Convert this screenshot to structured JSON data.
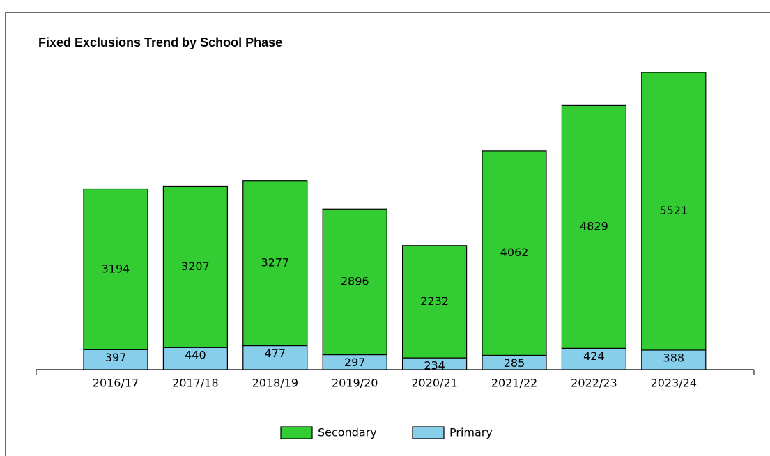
{
  "chart_data": {
    "type": "stacked_bar",
    "title": "Fixed Exclusions Trend by School Phase",
    "categories": [
      "2016/17",
      "2017/18",
      "2018/19",
      "2019/20",
      "2020/21",
      "2021/22",
      "2022/23",
      "2023/24"
    ],
    "series": [
      {
        "name": "Secondary",
        "color": "#33cc33",
        "values": [
          3194,
          3207,
          3277,
          2896,
          2232,
          4062,
          4829,
          5521
        ]
      },
      {
        "name": "Primary",
        "color": "#87ceeb",
        "values": [
          397,
          440,
          477,
          297,
          234,
          285,
          424,
          388
        ]
      }
    ],
    "legend": "bottom"
  }
}
